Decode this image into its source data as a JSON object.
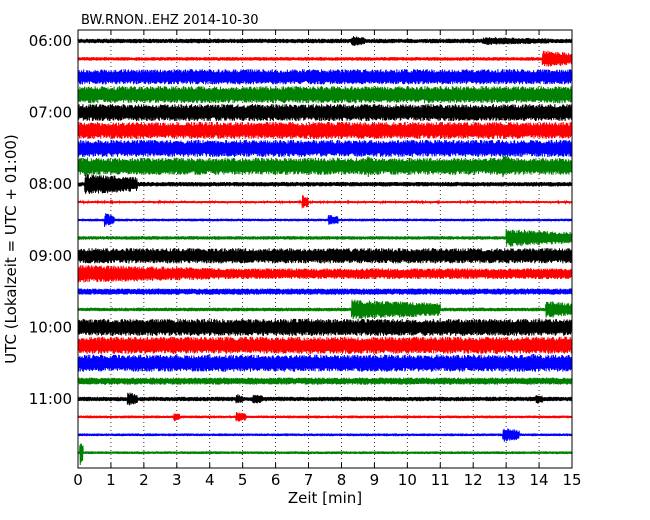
{
  "chart_data": {
    "type": "line",
    "title": "BW.RNON..EHZ 2014-10-30",
    "xlabel": "Zeit  [min]",
    "ylabel": "UTC (Lokalzeit = UTC + 01:00)",
    "xlim": [
      0,
      15
    ],
    "x_ticks": [
      0,
      1,
      2,
      3,
      4,
      5,
      6,
      7,
      8,
      9,
      10,
      11,
      12,
      13,
      14,
      15
    ],
    "y_ticks": [
      "06:00",
      "07:00",
      "08:00",
      "09:00",
      "10:00",
      "11:00"
    ],
    "grid": "vertical dotted at each minute",
    "color_cycle": [
      "#000000",
      "#ff0000",
      "#0000ff",
      "#008000"
    ],
    "traces": [
      {
        "start": "06:00",
        "amplitude": 0.25,
        "bursts": [
          {
            "t": 8.3,
            "amp": 0.6,
            "dur": 0.4
          },
          {
            "t": 12.3,
            "amp": 0.45,
            "dur": 2.0
          }
        ]
      },
      {
        "start": "06:15",
        "amplitude": 0.2,
        "bursts": [
          {
            "t": 14.1,
            "amp": 1.0,
            "dur": 0.9
          }
        ]
      },
      {
        "start": "06:30",
        "amplitude": 0.85,
        "bursts": []
      },
      {
        "start": "06:45",
        "amplitude": 0.95,
        "bursts": []
      },
      {
        "start": "07:00",
        "amplitude": 0.95,
        "bursts": []
      },
      {
        "start": "07:15",
        "amplitude": 0.95,
        "bursts": []
      },
      {
        "start": "07:30",
        "amplitude": 0.95,
        "bursts": [
          {
            "t": 12.9,
            "amp": 1.1,
            "dur": 0.2
          }
        ]
      },
      {
        "start": "07:45",
        "amplitude": 0.95,
        "bursts": [
          {
            "t": 0.2,
            "amp": 1.5,
            "dur": 0.1
          },
          {
            "t": 8.8,
            "amp": 1.3,
            "dur": 0.3
          },
          {
            "t": 12.9,
            "amp": 1.4,
            "dur": 0.25
          }
        ]
      },
      {
        "start": "08:00",
        "amplitude": 0.25,
        "bursts": [
          {
            "t": 0.2,
            "amp": 1.2,
            "dur": 1.6
          }
        ]
      },
      {
        "start": "08:15",
        "amplitude": 0.12,
        "bursts": [
          {
            "t": 6.8,
            "amp": 0.8,
            "dur": 0.2
          }
        ]
      },
      {
        "start": "08:30",
        "amplitude": 0.15,
        "bursts": [
          {
            "t": 0.8,
            "amp": 0.8,
            "dur": 0.3
          },
          {
            "t": 7.6,
            "amp": 0.6,
            "dur": 0.3
          }
        ]
      },
      {
        "start": "08:45",
        "amplitude": 0.2,
        "bursts": [
          {
            "t": 13.0,
            "amp": 1.0,
            "dur": 2.0
          }
        ]
      },
      {
        "start": "09:00",
        "amplitude": 0.85,
        "bursts": [
          {
            "t": 10.8,
            "amp": 0.5,
            "dur": 0.2
          }
        ]
      },
      {
        "start": "09:15",
        "amplitude": 0.6,
        "bursts": [
          {
            "t": 0.0,
            "amp": 1.0,
            "dur": 4.3
          }
        ]
      },
      {
        "start": "09:30",
        "amplitude": 0.35,
        "bursts": []
      },
      {
        "start": "09:45",
        "amplitude": 0.2,
        "bursts": [
          {
            "t": 8.3,
            "amp": 1.1,
            "dur": 2.7
          },
          {
            "t": 14.2,
            "amp": 1.0,
            "dur": 0.8
          }
        ]
      },
      {
        "start": "10:00",
        "amplitude": 0.95,
        "bursts": []
      },
      {
        "start": "10:15",
        "amplitude": 0.95,
        "bursts": []
      },
      {
        "start": "10:30",
        "amplitude": 0.95,
        "bursts": [
          {
            "t": 13.8,
            "amp": 1.2,
            "dur": 0.2
          }
        ]
      },
      {
        "start": "10:45",
        "amplitude": 0.4,
        "bursts": []
      },
      {
        "start": "11:00",
        "amplitude": 0.25,
        "bursts": [
          {
            "t": 1.5,
            "amp": 0.8,
            "dur": 0.3
          },
          {
            "t": 4.8,
            "amp": 0.6,
            "dur": 0.2
          },
          {
            "t": 5.3,
            "amp": 0.6,
            "dur": 0.3
          },
          {
            "t": 13.9,
            "amp": 0.6,
            "dur": 0.2
          }
        ]
      },
      {
        "start": "11:15",
        "amplitude": 0.15,
        "bursts": [
          {
            "t": 2.9,
            "amp": 0.5,
            "dur": 0.2
          },
          {
            "t": 4.8,
            "amp": 0.6,
            "dur": 0.3
          }
        ]
      },
      {
        "start": "11:30",
        "amplitude": 0.15,
        "bursts": [
          {
            "t": 12.9,
            "amp": 0.8,
            "dur": 0.5
          }
        ]
      },
      {
        "start": "11:45",
        "amplitude": 0.15,
        "bursts": [
          {
            "t": 0.05,
            "amp": 1.5,
            "dur": 0.1
          }
        ]
      }
    ]
  }
}
